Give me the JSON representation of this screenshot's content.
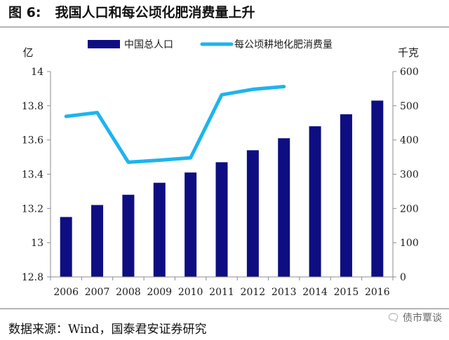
{
  "figure": {
    "label": "图 6:",
    "title": "我国人口和每公顷化肥消费量上升"
  },
  "source": "数据来源：Wind，国泰君安证券研究",
  "watermark": {
    "icon": "chat-bubble-icon",
    "text": "债市覃谈"
  },
  "colors": {
    "bar": "#0e0e82",
    "line": "#1db4ee",
    "axis": "#8c8c8c",
    "text": "#1a1a1a"
  },
  "chart_data": {
    "type": "bar+line",
    "categories": [
      "2006",
      "2007",
      "2008",
      "2009",
      "2010",
      "2011",
      "2012",
      "2013",
      "2014",
      "2015",
      "2016"
    ],
    "series": [
      {
        "name": "中国总人口",
        "type": "bar",
        "axis": "left",
        "values": [
          13.15,
          13.22,
          13.28,
          13.35,
          13.41,
          13.47,
          13.54,
          13.61,
          13.68,
          13.75,
          13.83
        ]
      },
      {
        "name": "每公顷耕地化肥消费量",
        "type": "line",
        "axis": "right",
        "values": [
          469,
          480,
          335,
          341,
          348,
          532,
          548,
          556,
          null,
          null,
          null
        ]
      }
    ],
    "left_axis": {
      "unit": "亿",
      "min": 12.8,
      "max": 14,
      "step": 0.2,
      "tick_labels": [
        "12.8",
        "13",
        "13.2",
        "13.4",
        "13.6",
        "13.8",
        "14"
      ]
    },
    "right_axis": {
      "unit": "千克",
      "min": 0,
      "max": 600,
      "step": 100,
      "tick_labels": [
        "0",
        "100",
        "200",
        "300",
        "400",
        "500",
        "600"
      ]
    },
    "legend_position": "top-center",
    "grid": false
  }
}
